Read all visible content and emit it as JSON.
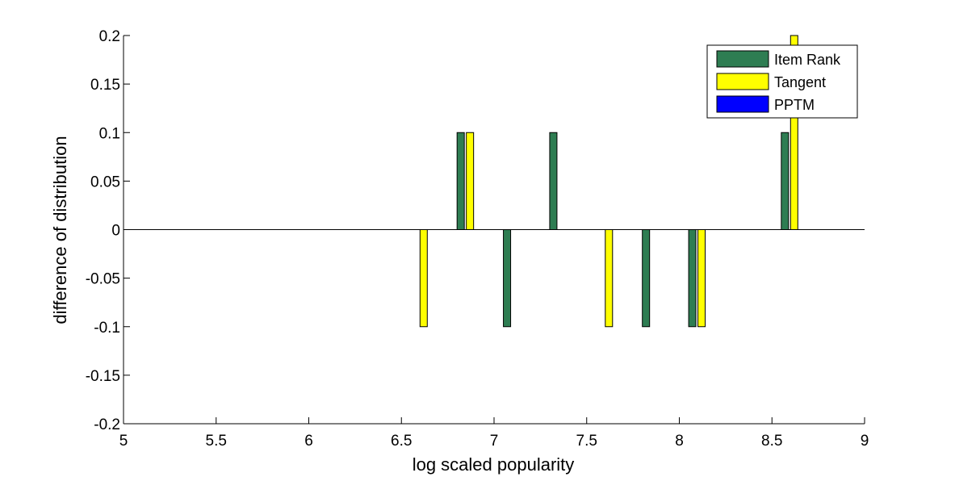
{
  "chart_data": {
    "type": "bar",
    "xlabel": "log scaled popularity",
    "ylabel": "difference of distribution",
    "xlim": [
      5,
      9
    ],
    "ylim": [
      -0.2,
      0.2
    ],
    "x_ticks": [
      5,
      5.5,
      6,
      6.5,
      7,
      7.5,
      8,
      8.5,
      9
    ],
    "x_tick_labels": [
      "5",
      "5.5",
      "6",
      "6.5",
      "7",
      "7.5",
      "8",
      "8.5",
      "9"
    ],
    "y_ticks": [
      -0.2,
      -0.15,
      -0.1,
      -0.05,
      0,
      0.05,
      0.1,
      0.15,
      0.2
    ],
    "y_tick_labels": [
      "-0.2",
      "-0.15",
      "-0.1",
      "-0.05",
      "0",
      "0.05",
      "0.1",
      "0.15",
      "0.2"
    ],
    "grid": false,
    "legend_position": "top-right",
    "series": [
      {
        "name": "Item Rank",
        "color": "#2e7d52",
        "x": [
          6.82,
          7.07,
          7.32,
          7.82,
          8.07,
          8.57
        ],
        "values": [
          0.1,
          -0.1,
          0.1,
          -0.1,
          -0.1,
          0.1
        ]
      },
      {
        "name": "Tangent",
        "color": "#ffff00",
        "x": [
          6.62,
          6.87,
          7.62,
          8.12,
          8.62
        ],
        "values": [
          -0.1,
          0.1,
          -0.1,
          -0.1,
          0.2
        ]
      },
      {
        "name": "PPTM",
        "color": "#0000ff",
        "x": [],
        "values": []
      }
    ]
  }
}
